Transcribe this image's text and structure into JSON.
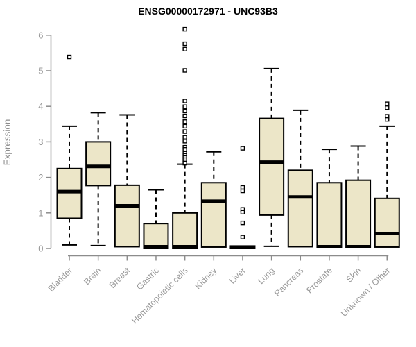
{
  "title": "ENSG00000172971 - UNC93B3",
  "chart_data": {
    "type": "boxplot",
    "title": "ENSG00000172971 - UNC93B3",
    "xlabel": "",
    "ylabel": "Expression",
    "ylim": [
      0,
      6
    ],
    "yticks": [
      0,
      1,
      2,
      3,
      4,
      5,
      6
    ],
    "grid": false,
    "legend": false,
    "categories": [
      "Bladder",
      "Brain",
      "Breast",
      "Gastric",
      "Hematopoietic cells",
      "Kidney",
      "Liver",
      "Lung",
      "Pancreas",
      "Prostate",
      "Skin",
      "Unknown / Other"
    ],
    "series": [
      {
        "name": "Bladder",
        "whisker_low": 0.1,
        "q1": 0.85,
        "median": 1.6,
        "q3": 2.25,
        "whisker_high": 3.44,
        "outliers": [
          5.39
        ]
      },
      {
        "name": "Brain",
        "whisker_low": 0.08,
        "q1": 1.77,
        "median": 2.31,
        "q3": 3.0,
        "whisker_high": 3.82,
        "outliers": []
      },
      {
        "name": "Breast",
        "whisker_low": 0.05,
        "q1": 0.05,
        "median": 1.2,
        "q3": 1.78,
        "whisker_high": 3.76,
        "outliers": []
      },
      {
        "name": "Gastric",
        "whisker_low": 0.0,
        "q1": 0.0,
        "median": 0.05,
        "q3": 0.7,
        "whisker_high": 1.65,
        "outliers": []
      },
      {
        "name": "Hematopoietic cells",
        "whisker_low": 0.0,
        "q1": 0.0,
        "median": 0.05,
        "q3": 1.0,
        "whisker_high": 2.37,
        "outliers": [
          6.17,
          5.76,
          5.61,
          5.01,
          4.15,
          3.99,
          3.87,
          3.73,
          3.57,
          3.44,
          3.29,
          3.13,
          3.02,
          2.85,
          2.79,
          2.68,
          2.62,
          2.56,
          2.5,
          2.44,
          2.4
        ]
      },
      {
        "name": "Kidney",
        "whisker_low": 0.04,
        "q1": 0.04,
        "median": 1.33,
        "q3": 1.85,
        "whisker_high": 2.72,
        "outliers": []
      },
      {
        "name": "Liver",
        "whisker_low": 0.0,
        "q1": 0.0,
        "median": 0.03,
        "q3": 0.07,
        "whisker_high": 0.07,
        "outliers": [
          2.82,
          1.72,
          1.62,
          1.1,
          1.02,
          0.72,
          0.32
        ]
      },
      {
        "name": "Lung",
        "whisker_low": 0.06,
        "q1": 0.94,
        "median": 2.43,
        "q3": 3.66,
        "whisker_high": 5.06,
        "outliers": []
      },
      {
        "name": "Pancreas",
        "whisker_low": 0.05,
        "q1": 0.05,
        "median": 1.45,
        "q3": 2.2,
        "whisker_high": 3.89,
        "outliers": []
      },
      {
        "name": "Prostate",
        "whisker_low": 0.03,
        "q1": 0.03,
        "median": 0.05,
        "q3": 1.85,
        "whisker_high": 2.79,
        "outliers": []
      },
      {
        "name": "Skin",
        "whisker_low": 0.03,
        "q1": 0.03,
        "median": 0.05,
        "q3": 1.92,
        "whisker_high": 2.88,
        "outliers": []
      },
      {
        "name": "Unknown / Other",
        "whisker_low": 0.04,
        "q1": 0.04,
        "median": 0.42,
        "q3": 1.41,
        "whisker_high": 3.44,
        "outliers": [
          4.07,
          3.96,
          3.72,
          3.63
        ]
      }
    ],
    "style": {
      "box_fill": "#ECE6C8",
      "box_border": "#000000",
      "median_color": "#000000",
      "whisker_style": "dashed",
      "outlier_marker": "open-square",
      "axis_color": "#8c8c8c",
      "tick_label_color": "#999999",
      "title_color": "#000000",
      "background": "#ffffff"
    }
  }
}
